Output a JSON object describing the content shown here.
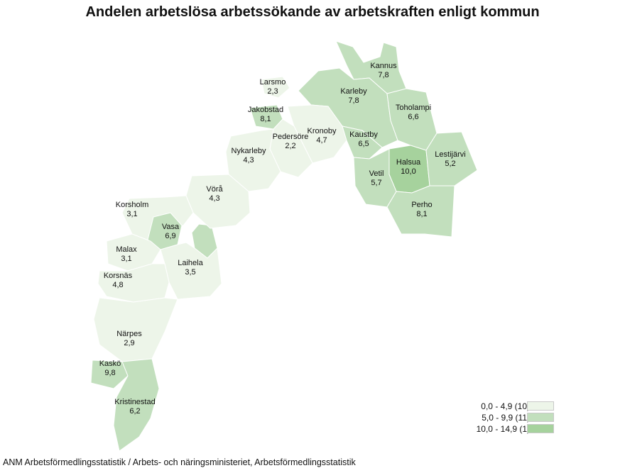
{
  "title": "Andelen arbetslösa arbetssökande av arbetskraften enligt kommun",
  "source": "ANM Arbetsförmedlingsstatistik / Arbets- och näringsministeriet, Arbetsförmedlingsstatistik",
  "colors": {
    "class_low": "#edf5e9",
    "class_mid": "#c2dfbd",
    "class_high": "#a6d29d",
    "border": "#ffffff"
  },
  "legend": [
    {
      "label": "0,0 - 4,9 (10)",
      "class": "class_low"
    },
    {
      "label": "5,0 - 9,9 (11)",
      "class": "class_mid"
    },
    {
      "label": "10,0 - 14,9 (1)",
      "class": "class_high"
    }
  ],
  "municipalities": [
    {
      "id": "kannus",
      "name": "Kannus",
      "value": "7,8",
      "class": "class_mid"
    },
    {
      "id": "larsmo",
      "name": "Larsmo",
      "value": "2,3",
      "class": "class_low"
    },
    {
      "id": "karleby",
      "name": "Karleby",
      "value": "7,8",
      "class": "class_mid"
    },
    {
      "id": "toholampi",
      "name": "Toholampi",
      "value": "6,6",
      "class": "class_mid"
    },
    {
      "id": "jakobstad",
      "name": "Jakobstad",
      "value": "8,1",
      "class": "class_mid"
    },
    {
      "id": "kronoby",
      "name": "Kronoby",
      "value": "4,7",
      "class": "class_low"
    },
    {
      "id": "kaustby",
      "name": "Kaustby",
      "value": "6,5",
      "class": "class_mid"
    },
    {
      "id": "pedersore",
      "name": "Pedersöre",
      "value": "2,2",
      "class": "class_low"
    },
    {
      "id": "nykarleby",
      "name": "Nykarleby",
      "value": "4,3",
      "class": "class_low"
    },
    {
      "id": "halsua",
      "name": "Halsua",
      "value": "10,0",
      "class": "class_high"
    },
    {
      "id": "lestijarvi",
      "name": "Lestijärvi",
      "value": "5,2",
      "class": "class_mid"
    },
    {
      "id": "vetil",
      "name": "Vetil",
      "value": "5,7",
      "class": "class_mid"
    },
    {
      "id": "vora",
      "name": "Vörå",
      "value": "4,3",
      "class": "class_low"
    },
    {
      "id": "perho",
      "name": "Perho",
      "value": "8,1",
      "class": "class_mid"
    },
    {
      "id": "korsholm",
      "name": "Korsholm",
      "value": "3,1",
      "class": "class_low"
    },
    {
      "id": "vasa",
      "name": "Vasa",
      "value": "6,9",
      "class": "class_mid"
    },
    {
      "id": "malax",
      "name": "Malax",
      "value": "3,1",
      "class": "class_low"
    },
    {
      "id": "laihela",
      "name": "Laihela",
      "value": "3,5",
      "class": "class_low"
    },
    {
      "id": "korsnas",
      "name": "Korsnäs",
      "value": "4,8",
      "class": "class_low"
    },
    {
      "id": "narpes",
      "name": "Närpes",
      "value": "2,9",
      "class": "class_low"
    },
    {
      "id": "kasko",
      "name": "Kaskö",
      "value": "9,8",
      "class": "class_mid"
    },
    {
      "id": "kristinestad",
      "name": "Kristinestad",
      "value": "6,2",
      "class": "class_mid"
    }
  ]
}
